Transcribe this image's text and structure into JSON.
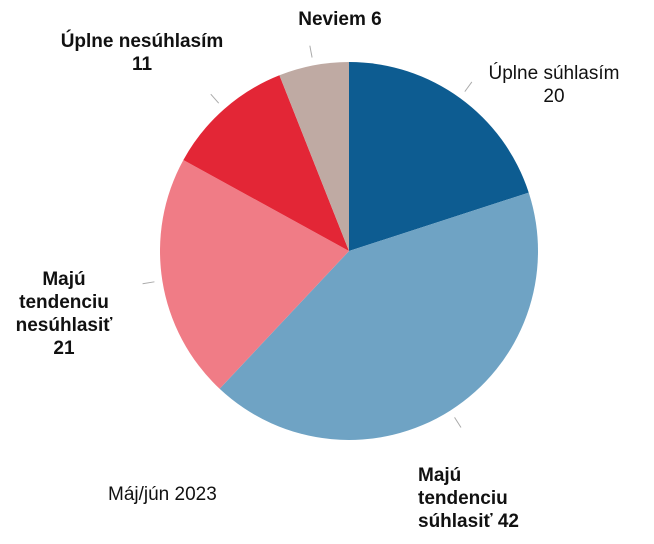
{
  "chart_data": {
    "type": "pie",
    "note": "Máj/jún 2023",
    "categories": [
      "Úplne súhlasím",
      "Majú tendenciu súhlasiť",
      "Majú tendenciu nesúhlasiť",
      "Úplne nesúhlasím",
      "Neviem"
    ],
    "values": [
      20,
      42,
      21,
      11,
      6
    ],
    "colors": [
      "#0d5c91",
      "#6fa3c4",
      "#f07c86",
      "#e32636",
      "#bfaaa3"
    ]
  }
}
